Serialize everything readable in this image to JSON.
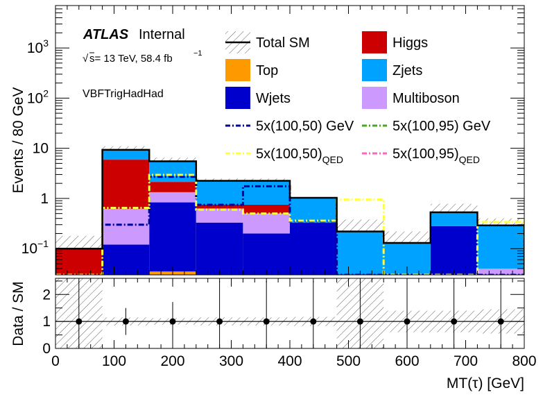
{
  "chart_data": [
    {
      "type": "bar",
      "stacked": true,
      "yscale": "log",
      "x_edges": [
        0,
        80,
        160,
        240,
        320,
        400,
        480,
        560,
        640,
        720,
        800
      ],
      "xlim": [
        0,
        800
      ],
      "ylim": [
        0.03,
        7000
      ],
      "ylabel": "Events / 80 GeV",
      "y_ticks": [
        {
          "value": 0.1,
          "base": "10",
          "exp": "−1"
        },
        {
          "value": 1,
          "base": "1",
          "exp": ""
        },
        {
          "value": 10,
          "base": "10",
          "exp": ""
        },
        {
          "value": 100,
          "base": "10",
          "exp": "2"
        },
        {
          "value": 1000,
          "base": "10",
          "exp": "3"
        }
      ],
      "series": [
        {
          "name": "Top",
          "color": "#ff9900",
          "values": [
            0,
            0,
            0.035,
            0,
            0,
            0,
            0,
            0,
            0,
            0
          ]
        },
        {
          "name": "Multiboson",
          "color": "#cc99ff",
          "values": [
            0,
            0,
            0,
            0,
            0,
            0,
            0,
            0,
            0,
            0.04
          ]
        },
        {
          "name": "Wjets",
          "color": "#0000cc",
          "values": [
            0,
            0.12,
            0.8,
            0.33,
            0.2,
            0.33,
            0,
            0,
            0.28,
            0
          ]
        },
        {
          "name": "Multiboson",
          "color": "#cc99ff",
          "values": [
            0,
            0.5,
            0.5,
            0.3,
            0.3,
            0,
            0,
            0,
            0,
            0
          ]
        },
        {
          "name": "Higgs",
          "color": "#cc0000",
          "values": [
            0.1,
            5.3,
            0.8,
            0.12,
            0.25,
            0,
            0,
            0,
            0,
            0
          ]
        },
        {
          "name": "Zjets",
          "color": "#00a2ff",
          "values": [
            0,
            3.4,
            3.4,
            1.5,
            1.5,
            0.7,
            0.22,
            0.13,
            0.25,
            0.25
          ]
        }
      ],
      "total_sm": [
        0.1,
        9.3,
        5.5,
        2.25,
        2.25,
        1.03,
        0.22,
        0.13,
        0.53,
        0.29
      ],
      "uncertainty_band": {
        "low": [
          0.03,
          7.2,
          4.6,
          1.95,
          1.95,
          0.85,
          0.14,
          0.1,
          0.38,
          0.22
        ],
        "high": [
          0.18,
          11.0,
          6.5,
          2.5,
          2.5,
          1.05,
          0.38,
          0.22,
          0.78,
          0.4
        ]
      },
      "signal_lines": [
        {
          "name": "5x(100,50) GeV",
          "color": "#000099",
          "dash": "dashdot",
          "values": [
            0.03,
            0.3,
            2.7,
            0.75,
            1.75,
            0.35,
            0.03,
            0.03,
            0.03,
            0.03
          ]
        },
        {
          "name": "5x(100,95) GeV",
          "color": "#44aa22",
          "dash": "dashdot",
          "values": []
        },
        {
          "name": "5x(100,50)QED",
          "color": "#ffff44",
          "dash": "dashdot",
          "values": [
            0.03,
            0.65,
            2.95,
            0.6,
            0.5,
            0.36,
            0.95,
            0.03,
            0.03,
            0.34
          ]
        },
        {
          "name": "5x(100,95)QED",
          "color": "#ff66bb",
          "dash": "dashdot",
          "values": []
        }
      ],
      "legend": {
        "placement": "top-right",
        "entries": [
          {
            "label": "Total SM",
            "sub": "",
            "kind": "total",
            "color": "#000000"
          },
          {
            "label": "Higgs",
            "sub": "",
            "kind": "fill",
            "color": "#cc0000"
          },
          {
            "label": "Top",
            "sub": "",
            "kind": "fill",
            "color": "#ff9900"
          },
          {
            "label": "Zjets",
            "sub": "",
            "kind": "fill",
            "color": "#00a2ff"
          },
          {
            "label": "Wjets",
            "sub": "",
            "kind": "fill",
            "color": "#0000cc"
          },
          {
            "label": "Multiboson",
            "sub": "",
            "kind": "fill",
            "color": "#cc99ff"
          },
          {
            "label": "5x(100,50) GeV",
            "sub": "",
            "kind": "line",
            "color": "#000099"
          },
          {
            "label": "5x(100,95) GeV",
            "sub": "",
            "kind": "line",
            "color": "#44aa22"
          },
          {
            "label": "5x(100,50)",
            "sub": "QED",
            "kind": "line",
            "color": "#ffff44"
          },
          {
            "label": "5x(100,95)",
            "sub": "QED",
            "kind": "line",
            "color": "#ff66bb"
          }
        ]
      },
      "annotations": {
        "atlas": "ATLAS",
        "internal": "Internal",
        "energy": "s= 13 TeV, 58.4 fb",
        "energy_sup": "−1",
        "region": "VBFTrigHadHad"
      }
    },
    {
      "type": "scatter",
      "ylabel": "Data / SM",
      "xlabel": "MT(τ) [GeV]",
      "xlim": [
        0,
        800
      ],
      "ylim": [
        0,
        2.6
      ],
      "x_ticks": [
        0,
        100,
        200,
        300,
        400,
        500,
        600,
        700,
        800
      ],
      "y_ticks": [
        0,
        1,
        2
      ],
      "points": [
        {
          "x": 40,
          "y": 1,
          "err": 1.5
        },
        {
          "x": 120,
          "y": 1,
          "err": 0.5
        },
        {
          "x": 200,
          "y": 1,
          "err": 0.72
        },
        {
          "x": 280,
          "y": 1,
          "err": 1.5
        },
        {
          "x": 360,
          "y": 1,
          "err": 1.5
        },
        {
          "x": 440,
          "y": 1,
          "err": 1.5
        },
        {
          "x": 520,
          "y": 1,
          "err": 1.5
        },
        {
          "x": 600,
          "y": 1,
          "err": 1.5
        },
        {
          "x": 680,
          "y": 1,
          "err": 1.5
        },
        {
          "x": 760,
          "y": 1,
          "err": 1.5
        }
      ],
      "band": {
        "low": [
          0.0,
          0.85,
          0.88,
          0.85,
          0.85,
          0.83,
          0.0,
          0.6,
          0.6,
          0.55
        ],
        "high": [
          2.6,
          1.15,
          1.12,
          1.15,
          1.15,
          1.17,
          2.6,
          1.4,
          1.4,
          1.45
        ]
      }
    }
  ]
}
